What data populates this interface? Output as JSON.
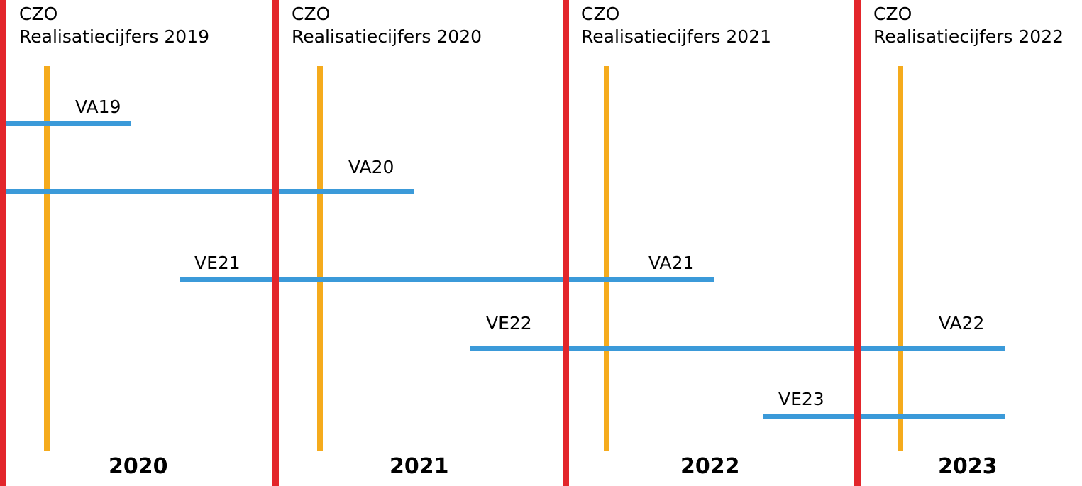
{
  "colors": {
    "czo_line": "#e3262b",
    "mid_line": "#f5ab1d",
    "bar": "#3b9ad9"
  },
  "czo": [
    {
      "title": "CZO",
      "subtitle": "Realisatiecijfers 2019"
    },
    {
      "title": "CZO",
      "subtitle": "Realisatiecijfers 2020"
    },
    {
      "title": "CZO",
      "subtitle": "Realisatiecijfers 2021"
    },
    {
      "title": "CZO",
      "subtitle": "Realisatiecijfers 2022"
    }
  ],
  "years": [
    "2020",
    "2021",
    "2022",
    "2023"
  ],
  "bars": [
    {
      "start_label": "",
      "end_label": "VA19"
    },
    {
      "start_label": "",
      "end_label": "VA20"
    },
    {
      "start_label": "VE21",
      "end_label": "VA21"
    },
    {
      "start_label": "VE22",
      "end_label": "VA22"
    },
    {
      "start_label": "VE23",
      "end_label": ""
    }
  ]
}
